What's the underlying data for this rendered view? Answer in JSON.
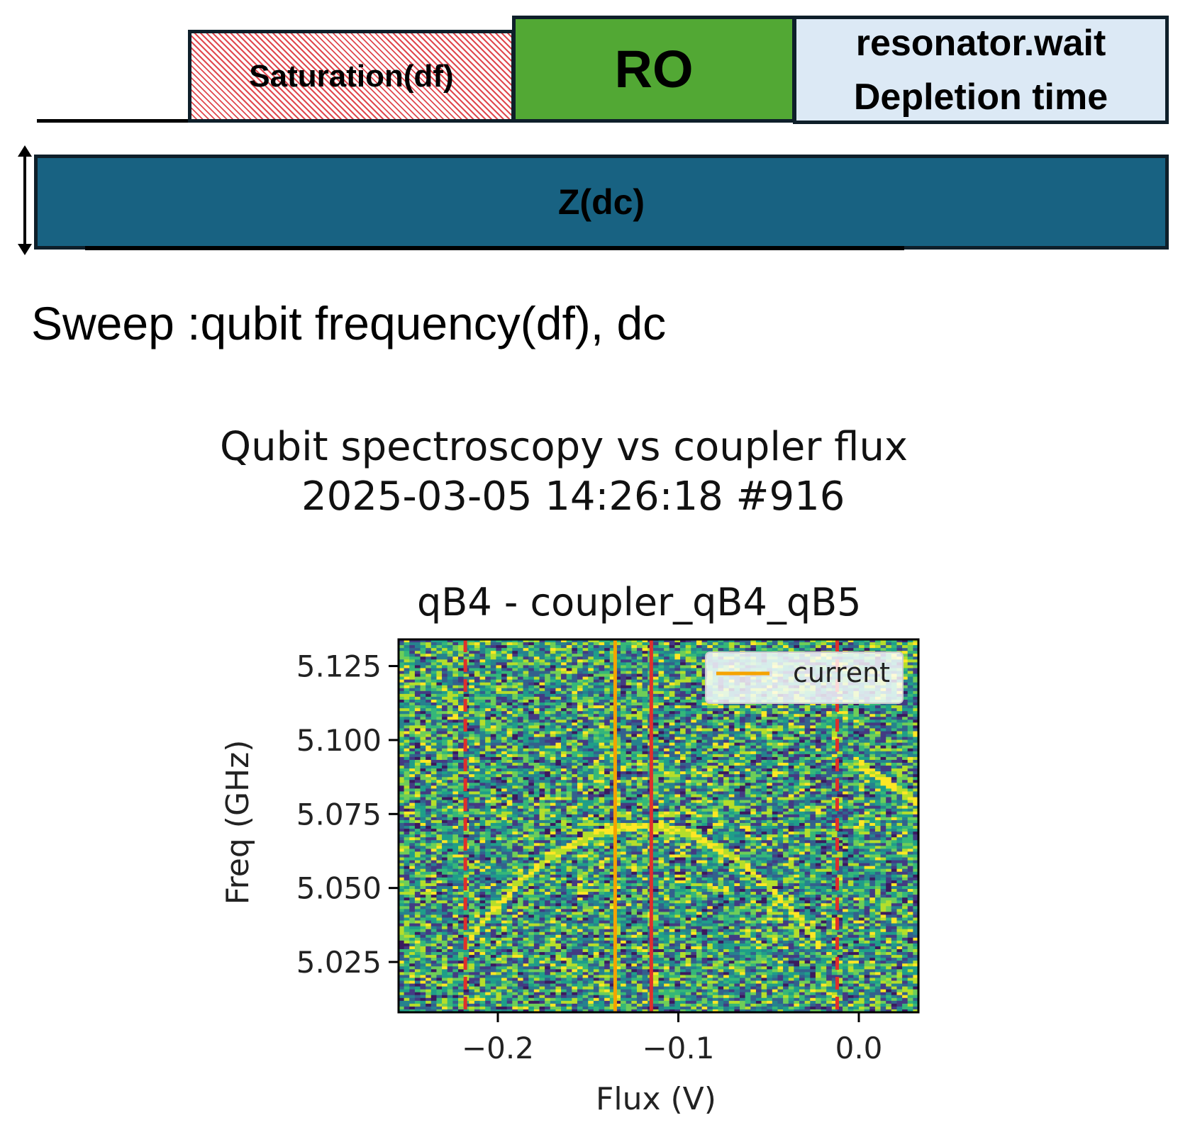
{
  "timing_diagram": {
    "saturation_label": "Saturation(df)",
    "ro_label": "RO",
    "resonator_wait_label": "resonator.wait",
    "depletion_label": "Depletion time",
    "z_label": "Z(dc)",
    "colors": {
      "saturation_hatch": "#e0484e",
      "ro": "#52a834",
      "resonator_wait": "#dce9f5",
      "z": "#186282"
    }
  },
  "sweep_text": "Sweep :qubit frequency(df), dc",
  "figure": {
    "title_line1": "Qubit spectroscopy vs coupler flux",
    "title_line2": "2025-03-05 14:26:18  #916"
  },
  "chart_data": {
    "type": "heatmap",
    "title": "qB4 - coupler_qB4_qB5",
    "xlabel": "Flux (V)",
    "ylabel": "Freq (GHz)",
    "xlim": [
      -0.255,
      0.033
    ],
    "ylim": [
      5.008,
      5.134
    ],
    "x_ticks": [
      {
        "value": -0.2,
        "label": "−0.2"
      },
      {
        "value": -0.1,
        "label": "−0.1"
      },
      {
        "value": 0.0,
        "label": "0.0"
      }
    ],
    "y_ticks": [
      {
        "value": 5.125,
        "label": "5.125"
      },
      {
        "value": 5.1,
        "label": "5.100"
      },
      {
        "value": 5.075,
        "label": "5.075"
      },
      {
        "value": 5.05,
        "label": "5.050"
      },
      {
        "value": 5.025,
        "label": "5.025"
      }
    ],
    "colormap": "viridis",
    "vertical_lines": [
      {
        "x": -0.218,
        "color": "#e0302a",
        "style": "dashed"
      },
      {
        "x": -0.135,
        "color": "#f5a300",
        "style": "solid",
        "legend": "current"
      },
      {
        "x": -0.115,
        "color": "#e0302a",
        "style": "solid"
      },
      {
        "x": -0.012,
        "color": "#e0302a",
        "style": "dashed"
      }
    ],
    "legend": {
      "position": "top-right",
      "entries": [
        "current"
      ]
    }
  }
}
